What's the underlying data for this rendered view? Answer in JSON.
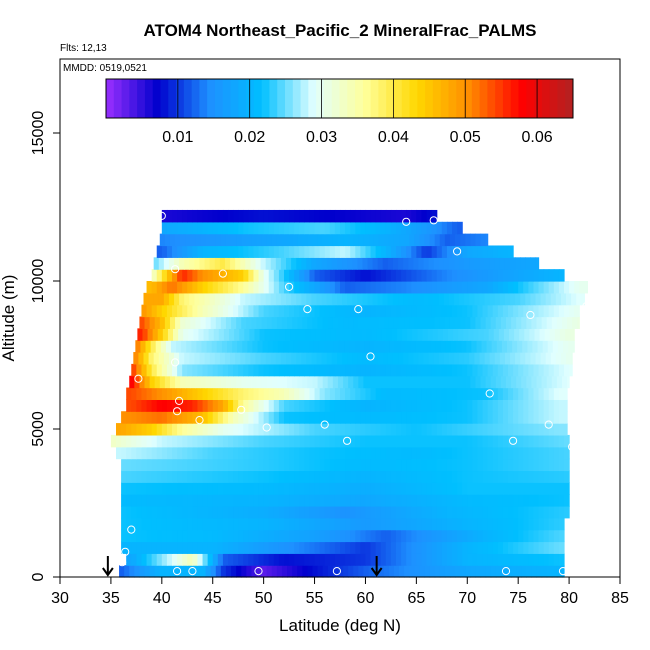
{
  "chart_data": {
    "type": "heatmap",
    "title": "ATOM4 Northeast_Pacific_2 MineralFrac_PALMS",
    "flights_label": "Flts: 12,13",
    "mmdd_label": "MMDD: 0519,0521",
    "xlabel": "Latitude (deg N)",
    "ylabel": "Altitude (m)",
    "xlim": [
      30,
      85
    ],
    "ylim": [
      0,
      17500
    ],
    "xticks": [
      30,
      35,
      40,
      45,
      50,
      55,
      60,
      65,
      70,
      75,
      80,
      85
    ],
    "yticks": [
      0,
      5000,
      10000,
      15000
    ],
    "colorbar": {
      "range": [
        0,
        0.065
      ],
      "ticks": [
        0.01,
        0.02,
        0.03,
        0.04,
        0.05,
        0.06
      ],
      "tick_labels": [
        "0.01",
        "0.02",
        "0.03",
        "0.04",
        "0.05",
        "0.06"
      ],
      "colors": [
        "#9b30ff",
        "#0000cd",
        "#1e90ff",
        "#00bfff",
        "#e0ffff",
        "#ffff99",
        "#ffd700",
        "#ff8c00",
        "#ff0000",
        "#b22222"
      ]
    },
    "altitude_rows": [
      {
        "alt": 200,
        "lat_min": 35.8,
        "lat_max": 79.5,
        "stops": [
          [
            36,
            0.012
          ],
          [
            40,
            0.02
          ],
          [
            44,
            0.02
          ],
          [
            46,
            0.01
          ],
          [
            50,
            0.003
          ],
          [
            55,
            0.008
          ],
          [
            60,
            0.012
          ],
          [
            70,
            0.018
          ],
          [
            79,
            0.02
          ]
        ]
      },
      {
        "alt": 600,
        "lat_min": 36.5,
        "lat_max": 79.5,
        "stops": [
          [
            37,
            0.018
          ],
          [
            40,
            0.026
          ],
          [
            43,
            0.034
          ],
          [
            46,
            0.012
          ],
          [
            52,
            0.008
          ],
          [
            60,
            0.01
          ],
          [
            70,
            0.02
          ],
          [
            79,
            0.022
          ]
        ]
      },
      {
        "alt": 1000,
        "lat_min": 36,
        "lat_max": 79.5,
        "stops": [
          [
            36,
            0.02
          ],
          [
            45,
            0.02
          ],
          [
            52,
            0.015
          ],
          [
            60,
            0.01
          ],
          [
            70,
            0.02
          ],
          [
            79,
            0.025
          ]
        ]
      },
      {
        "alt": 1400,
        "lat_min": 36,
        "lat_max": 79.5,
        "stops": [
          [
            36,
            0.022
          ],
          [
            45,
            0.021
          ],
          [
            55,
            0.017
          ],
          [
            62,
            0.012
          ],
          [
            72,
            0.02
          ],
          [
            79,
            0.024
          ]
        ]
      },
      {
        "alt": 1800,
        "lat_min": 36,
        "lat_max": 79.5,
        "stops": [
          [
            36,
            0.022
          ],
          [
            50,
            0.02
          ],
          [
            60,
            0.016
          ],
          [
            70,
            0.02
          ],
          [
            79,
            0.023
          ]
        ]
      },
      {
        "alt": 2200,
        "lat_min": 36,
        "lat_max": 80,
        "stops": [
          [
            36,
            0.022
          ],
          [
            50,
            0.019
          ],
          [
            58,
            0.015
          ],
          [
            68,
            0.02
          ],
          [
            80,
            0.023
          ]
        ]
      },
      {
        "alt": 2600,
        "lat_min": 36,
        "lat_max": 80,
        "stops": [
          [
            36,
            0.021
          ],
          [
            50,
            0.02
          ],
          [
            60,
            0.018
          ],
          [
            70,
            0.021
          ],
          [
            80,
            0.022
          ]
        ]
      },
      {
        "alt": 3000,
        "lat_min": 36,
        "lat_max": 80,
        "stops": [
          [
            36,
            0.022
          ],
          [
            50,
            0.021
          ],
          [
            60,
            0.019
          ],
          [
            70,
            0.022
          ],
          [
            80,
            0.022
          ]
        ]
      },
      {
        "alt": 3400,
        "lat_min": 36,
        "lat_max": 80,
        "stops": [
          [
            36,
            0.024
          ],
          [
            50,
            0.022
          ],
          [
            60,
            0.02
          ],
          [
            70,
            0.022
          ],
          [
            80,
            0.023
          ]
        ]
      },
      {
        "alt": 3800,
        "lat_min": 36,
        "lat_max": 80,
        "stops": [
          [
            36,
            0.025
          ],
          [
            50,
            0.023
          ],
          [
            60,
            0.021
          ],
          [
            70,
            0.022
          ],
          [
            80,
            0.024
          ]
        ]
      },
      {
        "alt": 4200,
        "lat_min": 35.5,
        "lat_max": 80,
        "stops": [
          [
            36,
            0.028
          ],
          [
            45,
            0.024
          ],
          [
            55,
            0.022
          ],
          [
            65,
            0.021
          ],
          [
            80,
            0.024
          ]
        ]
      },
      {
        "alt": 4600,
        "lat_min": 35,
        "lat_max": 80,
        "stops": [
          [
            35,
            0.033
          ],
          [
            40,
            0.028
          ],
          [
            50,
            0.024
          ],
          [
            60,
            0.022
          ],
          [
            70,
            0.022
          ],
          [
            80,
            0.025
          ]
        ]
      },
      {
        "alt": 5000,
        "lat_min": 35.5,
        "lat_max": 79.8,
        "stops": [
          [
            36,
            0.048
          ],
          [
            39,
            0.044
          ],
          [
            42,
            0.036
          ],
          [
            46,
            0.03
          ],
          [
            55,
            0.024
          ],
          [
            65,
            0.022
          ],
          [
            79,
            0.026
          ]
        ]
      },
      {
        "alt": 5400,
        "lat_min": 36,
        "lat_max": 79.8,
        "stops": [
          [
            36,
            0.05
          ],
          [
            40,
            0.052
          ],
          [
            44,
            0.046
          ],
          [
            47,
            0.034
          ],
          [
            52,
            0.022
          ],
          [
            60,
            0.021
          ],
          [
            70,
            0.022
          ],
          [
            79,
            0.028
          ]
        ]
      },
      {
        "alt": 5800,
        "lat_min": 36.5,
        "lat_max": 79.8,
        "stops": [
          [
            37,
            0.054
          ],
          [
            40,
            0.058
          ],
          [
            43,
            0.056
          ],
          [
            46,
            0.048
          ],
          [
            48,
            0.036
          ],
          [
            52,
            0.024
          ],
          [
            60,
            0.02
          ],
          [
            70,
            0.022
          ],
          [
            79,
            0.028
          ]
        ]
      },
      {
        "alt": 6200,
        "lat_min": 36.5,
        "lat_max": 79.8,
        "stops": [
          [
            37,
            0.054
          ],
          [
            40,
            0.05
          ],
          [
            44,
            0.044
          ],
          [
            48,
            0.038
          ],
          [
            52,
            0.034
          ],
          [
            56,
            0.026
          ],
          [
            62,
            0.021
          ],
          [
            72,
            0.022
          ],
          [
            79,
            0.029
          ]
        ]
      },
      {
        "alt": 6600,
        "lat_min": 36.8,
        "lat_max": 80,
        "stops": [
          [
            37,
            0.058
          ],
          [
            39,
            0.044
          ],
          [
            42,
            0.034
          ],
          [
            48,
            0.03
          ],
          [
            55,
            0.028
          ],
          [
            60,
            0.022
          ],
          [
            70,
            0.022
          ],
          [
            80,
            0.029
          ]
        ]
      },
      {
        "alt": 7000,
        "lat_min": 37,
        "lat_max": 80.3,
        "stops": [
          [
            37,
            0.056
          ],
          [
            39,
            0.04
          ],
          [
            42,
            0.026
          ],
          [
            50,
            0.022
          ],
          [
            60,
            0.02
          ],
          [
            70,
            0.022
          ],
          [
            80,
            0.029
          ]
        ]
      },
      {
        "alt": 7400,
        "lat_min": 37.2,
        "lat_max": 80.3,
        "stops": [
          [
            37,
            0.054
          ],
          [
            39,
            0.038
          ],
          [
            42,
            0.028
          ],
          [
            50,
            0.024
          ],
          [
            60,
            0.021
          ],
          [
            70,
            0.023
          ],
          [
            80,
            0.03
          ]
        ]
      },
      {
        "alt": 7800,
        "lat_min": 37.4,
        "lat_max": 80.5,
        "stops": [
          [
            37,
            0.056
          ],
          [
            39,
            0.04
          ],
          [
            41,
            0.028
          ],
          [
            50,
            0.022
          ],
          [
            60,
            0.02
          ],
          [
            70,
            0.022
          ],
          [
            80,
            0.03
          ]
        ]
      },
      {
        "alt": 8200,
        "lat_min": 37.6,
        "lat_max": 80.5,
        "stops": [
          [
            38,
            0.056
          ],
          [
            40,
            0.044
          ],
          [
            42,
            0.03
          ],
          [
            50,
            0.022
          ],
          [
            60,
            0.021
          ],
          [
            72,
            0.024
          ],
          [
            80,
            0.031
          ]
        ]
      },
      {
        "alt": 8600,
        "lat_min": 37.8,
        "lat_max": 81,
        "stops": [
          [
            38,
            0.054
          ],
          [
            40,
            0.046
          ],
          [
            42,
            0.032
          ],
          [
            48,
            0.024
          ],
          [
            58,
            0.021
          ],
          [
            70,
            0.022
          ],
          [
            81,
            0.031
          ]
        ]
      },
      {
        "alt": 9000,
        "lat_min": 38,
        "lat_max": 81,
        "stops": [
          [
            38,
            0.05
          ],
          [
            40,
            0.044
          ],
          [
            44,
            0.034
          ],
          [
            50,
            0.024
          ],
          [
            60,
            0.02
          ],
          [
            70,
            0.022
          ],
          [
            81,
            0.03
          ]
        ]
      },
      {
        "alt": 9400,
        "lat_min": 38.2,
        "lat_max": 81.5,
        "stops": [
          [
            38,
            0.048
          ],
          [
            40,
            0.048
          ],
          [
            42,
            0.038
          ],
          [
            48,
            0.028
          ],
          [
            55,
            0.024
          ],
          [
            65,
            0.021
          ],
          [
            75,
            0.024
          ],
          [
            81,
            0.029
          ]
        ]
      },
      {
        "alt": 9800,
        "lat_min": 38.5,
        "lat_max": 81.8,
        "stops": [
          [
            39,
            0.046
          ],
          [
            41,
            0.052
          ],
          [
            44,
            0.044
          ],
          [
            48,
            0.036
          ],
          [
            52,
            0.024
          ],
          [
            58,
            0.012
          ],
          [
            64,
            0.014
          ],
          [
            72,
            0.018
          ],
          [
            81,
            0.03
          ]
        ]
      },
      {
        "alt": 10200,
        "lat_min": 39,
        "lat_max": 79.5,
        "stops": [
          [
            39,
            0.032
          ],
          [
            42,
            0.056
          ],
          [
            44,
            0.05
          ],
          [
            48,
            0.044
          ],
          [
            50,
            0.03
          ],
          [
            55,
            0.012
          ],
          [
            60,
            0.008
          ],
          [
            68,
            0.014
          ],
          [
            79,
            0.02
          ]
        ]
      },
      {
        "alt": 10600,
        "lat_min": 39.2,
        "lat_max": 77,
        "stops": [
          [
            39,
            0.024
          ],
          [
            42,
            0.034
          ],
          [
            46,
            0.04
          ],
          [
            50,
            0.028
          ],
          [
            55,
            0.018
          ],
          [
            62,
            0.012
          ],
          [
            70,
            0.016
          ],
          [
            77,
            0.018
          ]
        ]
      },
      {
        "alt": 11000,
        "lat_min": 39.5,
        "lat_max": 74.5,
        "stops": [
          [
            40,
            0.012
          ],
          [
            44,
            0.02
          ],
          [
            52,
            0.024
          ],
          [
            58,
            0.028
          ],
          [
            62,
            0.02
          ],
          [
            66,
            0.01
          ],
          [
            70,
            0.018
          ],
          [
            74,
            0.02
          ]
        ]
      },
      {
        "alt": 11400,
        "lat_min": 39.8,
        "lat_max": 72,
        "stops": [
          [
            40,
            0.014
          ],
          [
            46,
            0.016
          ],
          [
            52,
            0.018
          ],
          [
            58,
            0.02
          ],
          [
            64,
            0.018
          ],
          [
            68,
            0.012
          ],
          [
            72,
            0.014
          ]
        ]
      },
      {
        "alt": 11800,
        "lat_min": 40,
        "lat_max": 69.5,
        "stops": [
          [
            40,
            0.018
          ],
          [
            48,
            0.022
          ],
          [
            56,
            0.024
          ],
          [
            62,
            0.02
          ],
          [
            66,
            0.016
          ],
          [
            69,
            0.012
          ]
        ]
      },
      {
        "alt": 12200,
        "lat_min": 40,
        "lat_max": 67,
        "stops": [
          [
            40,
            0.006
          ],
          [
            50,
            0.008
          ],
          [
            58,
            0.007
          ],
          [
            64,
            0.006
          ],
          [
            67,
            0.008
          ]
        ]
      }
    ],
    "sample_points": [
      [
        40,
        12200
      ],
      [
        64,
        12000
      ],
      [
        66.7,
        12050
      ],
      [
        69,
        11000
      ],
      [
        41.3,
        10400
      ],
      [
        46,
        10250
      ],
      [
        52.5,
        9800
      ],
      [
        54.3,
        9050
      ],
      [
        59.3,
        9050
      ],
      [
        76.2,
        8850
      ],
      [
        81.7,
        9150
      ],
      [
        41.3,
        7250
      ],
      [
        37.7,
        6700
      ],
      [
        60.5,
        7450
      ],
      [
        72.2,
        6200
      ],
      [
        41.7,
        5950
      ],
      [
        41.5,
        5600
      ],
      [
        47.8,
        5650
      ],
      [
        43.7,
        5300
      ],
      [
        50.3,
        5050
      ],
      [
        56,
        5150
      ],
      [
        58.2,
        4600
      ],
      [
        74.5,
        4600
      ],
      [
        78,
        5150
      ],
      [
        80.3,
        4400
      ],
      [
        37,
        1600
      ],
      [
        36.4,
        850
      ],
      [
        36.1,
        500
      ],
      [
        41.5,
        200
      ],
      [
        43,
        200
      ],
      [
        49.5,
        200
      ],
      [
        57.2,
        200
      ],
      [
        73.8,
        200
      ],
      [
        79.4,
        200
      ]
    ],
    "arrows": [
      34.7,
      61.1
    ]
  }
}
